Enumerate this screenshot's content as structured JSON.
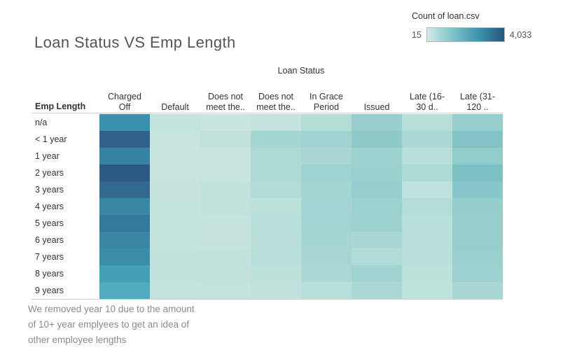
{
  "title": "Loan Status VS Emp Length",
  "legend": {
    "title": "Count of loan.csv",
    "min_label": "15",
    "max_label": "4,033",
    "gradient": [
      "#d3ebe5",
      "#7fc2c8",
      "#3e94ad",
      "#26567f"
    ]
  },
  "axis": {
    "column_header": "Loan Status",
    "row_header": "Emp Length"
  },
  "caption": {
    "lines": [
      "We removed year 10 due to the amount",
      "of 10+ year emplyees to get an idea of",
      "other employee lengths"
    ]
  },
  "chart_data": {
    "type": "heatmap",
    "title": "Loan Status VS Emp Length",
    "xlabel": "Loan Status",
    "ylabel": "Emp Length",
    "legend_title": "Count of loan.csv",
    "legend_range": [
      15,
      4033
    ],
    "columns": [
      "Charged Off",
      "Default",
      "Does not meet the..",
      "Does not meet the..",
      "In Grace Period",
      "Issued",
      "Late (16-30 d..",
      "Late (31-120 .."
    ],
    "column_display": [
      [
        "Charged",
        "Off"
      ],
      [
        "",
        "Default"
      ],
      [
        "Does not",
        "meet the.."
      ],
      [
        "Does not",
        "meet the.."
      ],
      [
        "In Grace",
        "Period"
      ],
      [
        "",
        "Issued"
      ],
      [
        "Late (16-",
        "30 d.."
      ],
      [
        "Late (31-",
        "120 .."
      ]
    ],
    "rows": [
      "n/a",
      "< 1 year",
      "1 year",
      "2 years",
      "3 years",
      "4 years",
      "5 years",
      "6 years",
      "7 years",
      "8 years",
      "9 years"
    ],
    "values": [
      [
        2100,
        40,
        15,
        45,
        270,
        590,
        260,
        610
      ],
      [
        3800,
        30,
        90,
        430,
        470,
        720,
        360,
        890
      ],
      [
        2700,
        30,
        25,
        330,
        380,
        530,
        250,
        680
      ],
      [
        4033,
        30,
        25,
        340,
        500,
        580,
        320,
        930
      ],
      [
        3400,
        35,
        55,
        280,
        450,
        630,
        160,
        810
      ],
      [
        2500,
        45,
        100,
        170,
        430,
        560,
        270,
        650
      ],
      [
        3000,
        45,
        40,
        210,
        430,
        530,
        240,
        620
      ],
      [
        2550,
        45,
        40,
        205,
        420,
        350,
        240,
        620
      ],
      [
        2300,
        55,
        60,
        215,
        410,
        300,
        240,
        600
      ],
      [
        1800,
        60,
        90,
        140,
        350,
        450,
        190,
        530
      ],
      [
        1450,
        45,
        50,
        130,
        255,
        340,
        160,
        430
      ]
    ],
    "cell_colors": [
      [
        "#3a91ae",
        "#c5e4dd",
        "#c8e5df",
        "#c5e3dd",
        "#b4ddd8",
        "#98cfce",
        "#b7ded9",
        "#96cecd"
      ],
      [
        "#2f618c",
        "#c7e4de",
        "#c2e1db",
        "#a6d6d2",
        "#a1d4d1",
        "#8fcaca",
        "#abd8d4",
        "#81c3c6"
      ],
      [
        "#3781a2",
        "#c7e4de",
        "#c7e4de",
        "#aedad5",
        "#a9d7d3",
        "#9ed2cf",
        "#b8dfda",
        "#91cccb"
      ],
      [
        "#2c5a85",
        "#c7e4de",
        "#c7e4de",
        "#addad5",
        "#9fd3d0",
        "#9ad0ce",
        "#afdbd6",
        "#7ec1c5"
      ],
      [
        "#336a90",
        "#c6e3dd",
        "#c4e2dc",
        "#b3dcd8",
        "#a3d5d1",
        "#96cecd",
        "#c0e2dc",
        "#87c6c9"
      ],
      [
        "#3a87a5",
        "#c5e3dd",
        "#c1e1db",
        "#bce0da",
        "#a5d5d2",
        "#9bd1ce",
        "#b6ded9",
        "#94cdcc"
      ],
      [
        "#34789c",
        "#c5e3dd",
        "#c6e3dd",
        "#b9dfda",
        "#a5d5d2",
        "#9ed2cf",
        "#b9dfda",
        "#97cecd"
      ],
      [
        "#3a86a4",
        "#c5e3dd",
        "#c6e3dd",
        "#badfda",
        "#a6d6d2",
        "#aad7d4",
        "#b9dfda",
        "#97cecd"
      ],
      [
        "#3b8da9",
        "#c4e2dc",
        "#c3e2dc",
        "#b8dfd9",
        "#a7d6d3",
        "#b0dbd6",
        "#b9dfda",
        "#99d0ce"
      ],
      [
        "#44a0b5",
        "#c3e2dc",
        "#c2e1db",
        "#bfe1db",
        "#acd9d5",
        "#a2d4d1",
        "#bde1db",
        "#9ed2cf"
      ],
      [
        "#52abbe",
        "#c5e3dd",
        "#c5e3dd",
        "#c0e1dc",
        "#b7ded9",
        "#abd8d4",
        "#c0e2dc",
        "#a8d7d3"
      ]
    ]
  }
}
